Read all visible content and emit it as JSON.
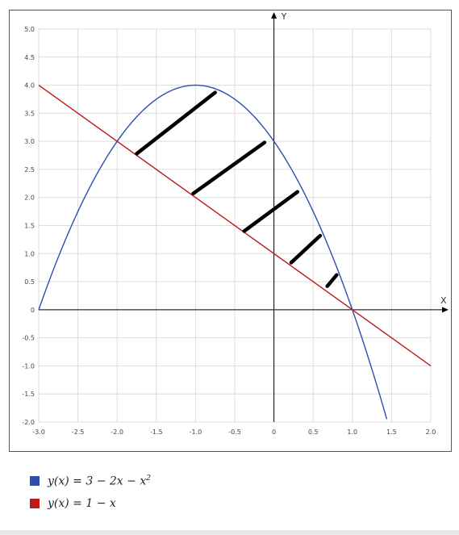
{
  "chart_data": {
    "type": "line",
    "title": "",
    "xlabel": "X",
    "ylabel": "Y",
    "xlim": [
      -3.0,
      2.0
    ],
    "ylim": [
      -2.0,
      5.0
    ],
    "grid": true,
    "x_ticks": [
      "-3.0",
      "-2.5",
      "-2.0",
      "-1.5",
      "-1.0",
      "-0.5",
      "0",
      "0.5",
      "1.0",
      "1.5",
      "2.0"
    ],
    "x_tick_values": [
      -3.0,
      -2.5,
      -2.0,
      -1.5,
      -1.0,
      -0.5,
      0,
      0.5,
      1.0,
      1.5,
      2.0
    ],
    "y_ticks": [
      "5.0",
      "4.5",
      "4.0",
      "3.5",
      "3.0",
      "2.5",
      "2.0",
      "1.5",
      "1.0",
      "0.5",
      "0",
      "-0.5",
      "-1.0",
      "-1.5",
      "-2.0"
    ],
    "y_tick_values": [
      5.0,
      4.5,
      4.0,
      3.5,
      3.0,
      2.5,
      2.0,
      1.5,
      1.0,
      0.5,
      0,
      -0.5,
      -1.0,
      -1.5,
      -2.0
    ],
    "series": [
      {
        "name": "y(x) = 3 − 2x − x²",
        "color": "#2a4fb0",
        "x": [
          -3.0,
          -2.75,
          -2.5,
          -2.25,
          -2.0,
          -1.75,
          -1.5,
          -1.25,
          -1.0,
          -0.75,
          -0.5,
          -0.25,
          0,
          0.25,
          0.5,
          0.75,
          1.0,
          1.25,
          1.45
        ],
        "y": [
          0,
          0.9375,
          1.75,
          2.4375,
          3.0,
          3.4375,
          3.75,
          3.9375,
          4.0,
          3.9375,
          3.75,
          3.4375,
          3.0,
          2.4375,
          1.75,
          0.9375,
          0,
          -1.0625,
          -2.0025
        ]
      },
      {
        "name": "y(x) = 1 − x",
        "color": "#c0191c",
        "x": [
          -3.0,
          2.0
        ],
        "y": [
          4.0,
          -1.0
        ]
      }
    ],
    "hatch_strokes": [
      {
        "x": [
          -1.75,
          -0.75
        ],
        "y": [
          2.78,
          3.87
        ]
      },
      {
        "x": [
          -1.03,
          -0.12
        ],
        "y": [
          2.07,
          2.98
        ]
      },
      {
        "x": [
          -0.38,
          0.3
        ],
        "y": [
          1.4,
          2.1
        ]
      },
      {
        "x": [
          0.22,
          0.59
        ],
        "y": [
          0.84,
          1.32
        ]
      },
      {
        "x": [
          0.68,
          0.8
        ],
        "y": [
          0.42,
          0.62
        ]
      }
    ],
    "legend": [
      {
        "label_main": "y(x) = 3 − 2x − x",
        "label_sup": "2",
        "color": "#2a4fb0"
      },
      {
        "label_main": "y(x) = 1 − x",
        "label_sup": "",
        "color": "#c0191c"
      }
    ]
  }
}
